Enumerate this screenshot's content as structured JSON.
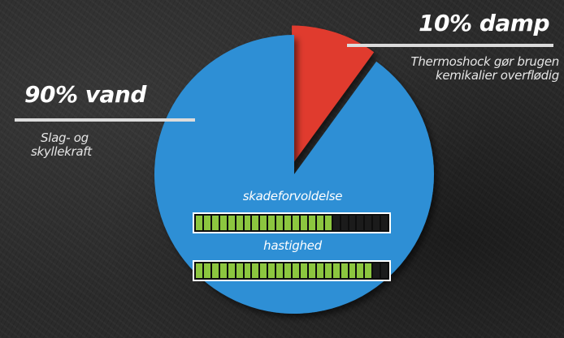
{
  "chart_data": {
    "type": "pie",
    "slices": [
      {
        "label": "90% vand",
        "value": 90,
        "note": "Slag- og skyllekraft",
        "color": "#2d8fd5"
      },
      {
        "label": "10% damp",
        "value": 10,
        "note": "Thermoshock gør brugen kemikalier overflødig",
        "color": "#e03a2e"
      }
    ]
  },
  "labels": {
    "water_title": "90% vand",
    "water_line1": "Slag- og",
    "water_line2": "skyllekraft",
    "steam_title": "10% damp",
    "steam_line1": "Thermoshock gør brugen",
    "steam_line2": "kemikalier overflødig"
  },
  "meters": [
    {
      "label": "skadeforvoldelse",
      "filled": 17,
      "total": 24,
      "color": "#8cc63f"
    },
    {
      "label": "hastighed",
      "filled": 22,
      "total": 24,
      "color": "#8cc63f"
    }
  ]
}
